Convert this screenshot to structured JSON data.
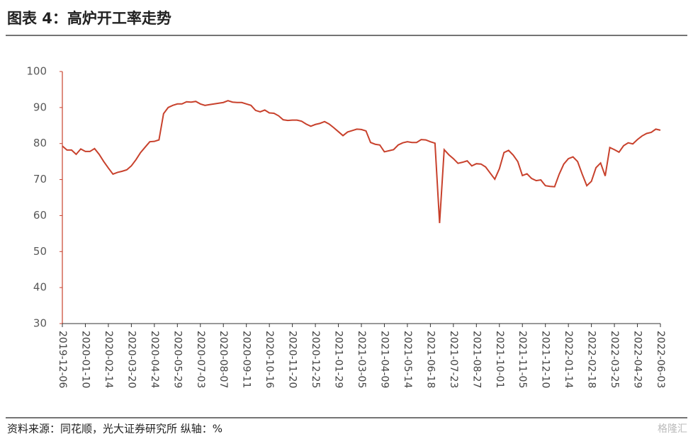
{
  "header": {
    "title": "图表 4：高炉开工率走势"
  },
  "chart_data": {
    "type": "line",
    "color": "#c8412c",
    "categories": [
      "2019-12-06",
      null,
      null,
      null,
      null,
      "2020-01-10",
      null,
      null,
      null,
      null,
      "2020-02-14",
      null,
      null,
      null,
      null,
      "2020-03-20",
      null,
      null,
      null,
      null,
      "2020-04-24",
      null,
      null,
      null,
      null,
      "2020-05-29",
      null,
      null,
      null,
      null,
      "2020-07-03",
      null,
      null,
      null,
      null,
      "2020-08-07",
      null,
      null,
      null,
      null,
      "2020-09-11",
      null,
      null,
      null,
      null,
      "2020-10-16",
      null,
      null,
      null,
      null,
      "2020-11-20",
      null,
      null,
      null,
      null,
      "2020-12-25",
      null,
      null,
      null,
      null,
      "2021-01-29",
      null,
      null,
      null,
      null,
      "2021-03-05",
      null,
      null,
      null,
      null,
      "2021-04-09",
      null,
      null,
      null,
      null,
      "2021-05-14",
      null,
      null,
      null,
      null,
      "2021-06-18",
      null,
      null,
      null,
      null,
      "2021-07-23",
      null,
      null,
      null,
      null,
      "2021-08-27",
      null,
      null,
      null,
      null,
      "2021-10-01",
      null,
      null,
      null,
      null,
      "2021-11-05",
      null,
      null,
      null,
      null,
      "2021-12-10",
      null,
      null,
      null,
      null,
      "2022-01-14",
      null,
      null,
      null,
      null,
      "2022-02-18",
      null,
      null,
      null,
      null,
      "2022-03-25",
      null,
      null,
      null,
      null,
      "2022-04-29",
      null,
      null,
      null,
      null,
      "2022-06-03"
    ],
    "values": [
      79.3,
      78.2,
      78.2,
      77,
      78.5,
      77.8,
      77.8,
      78.6,
      77,
      75,
      73.2,
      71.5,
      72,
      72.3,
      72.7,
      73.8,
      75.5,
      77.5,
      79,
      80.5,
      80.6,
      81,
      88.3,
      90,
      90.6,
      91,
      91,
      91.6,
      91.5,
      91.7,
      91,
      90.6,
      90.8,
      91,
      91.2,
      91.4,
      91.9,
      91.5,
      91.4,
      91.4,
      91,
      90.6,
      89.2,
      88.8,
      89.3,
      88.5,
      88.4,
      87.7,
      86.6,
      86.4,
      86.5,
      86.5,
      86.2,
      85.4,
      84.8,
      85.3,
      85.6,
      86.1,
      85.4,
      84.4,
      83.3,
      82.2,
      83.2,
      83.6,
      84,
      83.9,
      83.5,
      80.3,
      79.8,
      79.6,
      77.7,
      78,
      78.3,
      79.6,
      80.2,
      80.5,
      80.3,
      80.3,
      81.1,
      81,
      80.5,
      80.1,
      57.9,
      78.3,
      76.9,
      75.8,
      74.5,
      74.8,
      75.2,
      73.8,
      74.4,
      74.3,
      73.5,
      71.8,
      70.1,
      73,
      77.5,
      78.1,
      76.8,
      75,
      71.1,
      71.6,
      70.3,
      69.7,
      69.9,
      68.3,
      68.1,
      68,
      71.5,
      74.3,
      75.8,
      76.3,
      75,
      71.5,
      68.3,
      69.5,
      73.3,
      74.6,
      71,
      78.9,
      78.3,
      77.6,
      79.4,
      80.2,
      79.9,
      81.1,
      82.1,
      82.8,
      83.1,
      84,
      83.7
    ],
    "ylim": [
      30,
      100
    ],
    "yticks": [
      30,
      40,
      50,
      60,
      70,
      80,
      90,
      100
    ]
  },
  "footer": {
    "source": "资料来源：同花顺，光大证券研究所  纵轴：%",
    "watermark": "格隆汇"
  }
}
